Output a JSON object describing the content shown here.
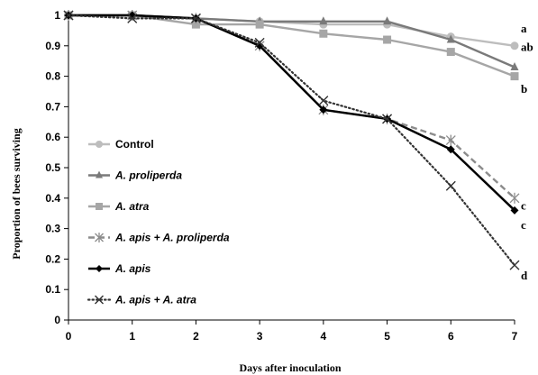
{
  "chart_data": {
    "type": "line",
    "xlabel": "Days after inoculation",
    "ylabel": "Proportion of bees surviving",
    "xlim": [
      0,
      7
    ],
    "ylim": [
      0,
      1
    ],
    "x_ticks": [
      "0",
      "1",
      "2",
      "3",
      "4",
      "5",
      "6",
      "7"
    ],
    "y_ticks": [
      "0",
      "0.1",
      "0.2",
      "0.3",
      "0.4",
      "0.5",
      "0.6",
      "0.7",
      "0.8",
      "0.9",
      "1"
    ],
    "grid": false,
    "legend_position": "left-center",
    "x": [
      0,
      1,
      2,
      3,
      4,
      5,
      6,
      7
    ],
    "series": [
      {
        "name": "Control",
        "values": [
          1.0,
          1.0,
          0.99,
          0.98,
          0.97,
          0.97,
          0.93,
          0.9
        ],
        "color": "#bdbdbd",
        "marker": "circle",
        "line_style": "solid",
        "label_italic": false
      },
      {
        "name": "A. proliperda",
        "values": [
          1.0,
          1.0,
          0.99,
          0.98,
          0.98,
          0.98,
          0.92,
          0.83
        ],
        "color": "#7a7a7a",
        "marker": "triangle",
        "line_style": "solid",
        "label_italic": true
      },
      {
        "name": "A. atra",
        "values": [
          1.0,
          1.0,
          0.97,
          0.97,
          0.94,
          0.92,
          0.88,
          0.8
        ],
        "color": "#a6a6a6",
        "marker": "square",
        "line_style": "solid",
        "label_italic": true
      },
      {
        "name": "A. apis + A. proliperda",
        "values": [
          1.0,
          1.0,
          0.99,
          0.9,
          0.69,
          0.66,
          0.59,
          0.4
        ],
        "color": "#8c8c8c",
        "marker": "star",
        "line_style": "dashed",
        "label_italic": true
      },
      {
        "name": "A. apis",
        "values": [
          1.0,
          1.0,
          0.99,
          0.9,
          0.69,
          0.66,
          0.56,
          0.36
        ],
        "color": "#000000",
        "marker": "diamond",
        "line_style": "solid",
        "label_italic": true
      },
      {
        "name": "A. apis + A. atra",
        "values": [
          1.0,
          0.99,
          0.99,
          0.91,
          0.72,
          0.66,
          0.44,
          0.18
        ],
        "color": "#333333",
        "marker": "x",
        "line_style": "dotted",
        "label_italic": true
      }
    ],
    "annotations": [
      {
        "text": "a",
        "x": 7,
        "y": 0.955
      },
      {
        "text": "ab",
        "x": 7,
        "y": 0.895
      },
      {
        "text": "b",
        "x": 7,
        "y": 0.757
      },
      {
        "text": "c",
        "x": 7,
        "y": 0.375
      },
      {
        "text": "c",
        "x": 7,
        "y": 0.31
      },
      {
        "text": "d",
        "x": 7,
        "y": 0.145
      }
    ]
  }
}
